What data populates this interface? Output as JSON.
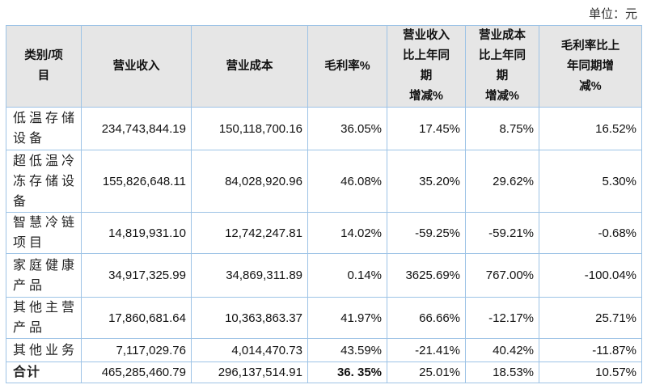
{
  "unit_label": "单位：元",
  "table": {
    "headers": [
      "类别/项\n目",
      "营业收入",
      "营业成本",
      "毛利率%",
      "营业收入\n比上年同\n期\n增减%",
      "营业成本\n比上年同\n期\n增减%",
      "毛利率比上\n年同期增\n减%"
    ],
    "rows": [
      {
        "label": "低温存储设备",
        "revenue": "234,743,844.19",
        "cost": "150,118,700.16",
        "margin": "36.05%",
        "rev_change": "17.45%",
        "cost_change": "8.75%",
        "margin_change": "16.52%"
      },
      {
        "label": "超低温冷冻存储设备",
        "revenue": "155,826,648.11",
        "cost": "84,028,920.96",
        "margin": "46.08%",
        "rev_change": "35.20%",
        "cost_change": "29.62%",
        "margin_change": "5.30%"
      },
      {
        "label": "智慧冷链项目",
        "revenue": "14,819,931.10",
        "cost": "12,742,247.81",
        "margin": "14.02%",
        "rev_change": "-59.25%",
        "cost_change": "-59.21%",
        "margin_change": "-0.68%"
      },
      {
        "label": "家庭健康产品",
        "revenue": "34,917,325.99",
        "cost": "34,869,311.89",
        "margin": "0.14%",
        "rev_change": "3625.69%",
        "cost_change": "767.00%",
        "margin_change": "-100.04%"
      },
      {
        "label": "其他主营产品",
        "revenue": "17,860,681.64",
        "cost": "10,363,863.37",
        "margin": "41.97%",
        "rev_change": "66.66%",
        "cost_change": "-12.17%",
        "margin_change": "25.71%"
      },
      {
        "label": "其他业务",
        "revenue": "7,117,029.76",
        "cost": "4,014,470.73",
        "margin": "43.59%",
        "rev_change": "-21.41%",
        "cost_change": "40.42%",
        "margin_change": "-11.87%"
      }
    ],
    "total": {
      "label": "合计",
      "revenue": "465,285,460.79",
      "cost": "296,137,514.91",
      "margin": "36. 35%",
      "rev_change": "25.01%",
      "cost_change": "18.53%",
      "margin_change": "10.57%"
    }
  }
}
